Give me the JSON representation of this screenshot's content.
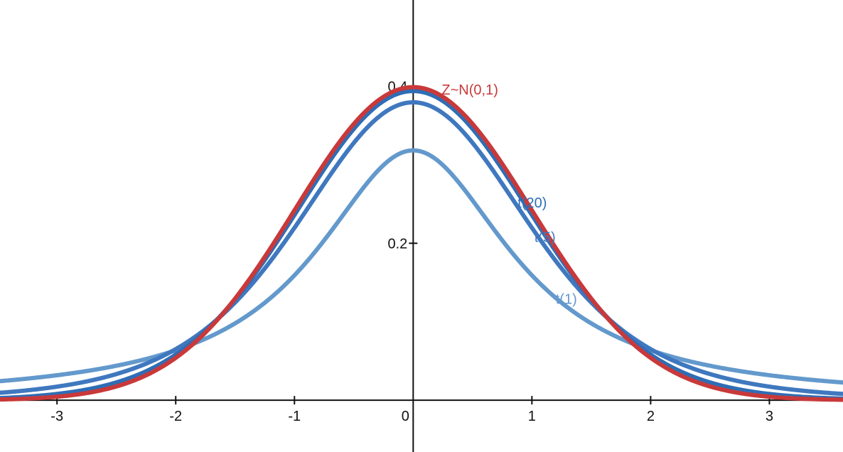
{
  "chart_data": {
    "type": "line",
    "title": "",
    "xlabel": "",
    "ylabel": "",
    "xlim": [
      -3.48,
      3.62
    ],
    "ylim": [
      -0.066,
      0.51
    ],
    "grid": false,
    "x_ticks": [
      {
        "value": -3,
        "label": "-3"
      },
      {
        "value": -2,
        "label": "-2"
      },
      {
        "value": -1,
        "label": "-1"
      },
      {
        "value": 0,
        "label": "0"
      },
      {
        "value": 1,
        "label": "1"
      },
      {
        "value": 2,
        "label": "2"
      },
      {
        "value": 3,
        "label": "3"
      }
    ],
    "y_ticks": [
      {
        "value": 0.2,
        "label": "0.2"
      },
      {
        "value": 0.4,
        "label": "0.4"
      }
    ],
    "series": [
      {
        "name": "t(1)",
        "distribution": "t",
        "df": 1,
        "color": "#6399cc",
        "label_at": [
          1.2,
          0.129
        ],
        "x": [
          -3.5,
          -3,
          -2.5,
          -2,
          -1.5,
          -1,
          -0.5,
          0,
          0.5,
          1,
          1.5,
          2,
          2.5,
          3,
          3.5
        ],
        "y": [
          0.0236,
          0.0318,
          0.0439,
          0.0637,
          0.0979,
          0.1592,
          0.2546,
          0.3183,
          0.2546,
          0.1592,
          0.0979,
          0.0637,
          0.0439,
          0.0318,
          0.0236
        ]
      },
      {
        "name": "t(5)",
        "distribution": "t",
        "df": 5,
        "color": "#3f78bf",
        "label_at": [
          1.02,
          0.208
        ],
        "x": [
          -3.5,
          -3,
          -2.5,
          -2,
          -1.5,
          -1,
          -0.5,
          0,
          0.5,
          1,
          1.5,
          2,
          2.5,
          3,
          3.5
        ],
        "y": [
          0.0067,
          0.013,
          0.0269,
          0.0651,
          0.1245,
          0.2197,
          0.3279,
          0.3796,
          0.3279,
          0.2197,
          0.1245,
          0.0651,
          0.0269,
          0.013,
          0.0067
        ]
      },
      {
        "name": "t(20)",
        "distribution": "t",
        "df": 20,
        "color": "#2f6db5",
        "label_at": [
          0.88,
          0.252
        ],
        "x": [
          -3.5,
          -3,
          -2.5,
          -2,
          -1.5,
          -1,
          -0.5,
          0,
          0.5,
          1,
          1.5,
          2,
          2.5,
          3,
          3.5
        ],
        "y": [
          0.002,
          0.0062,
          0.0197,
          0.0581,
          0.1286,
          0.236,
          0.348,
          0.394,
          0.348,
          0.236,
          0.1286,
          0.0581,
          0.0197,
          0.0062,
          0.002
        ]
      },
      {
        "name": "Z~N(0,1)",
        "distribution": "normal",
        "color": "#c9393a",
        "label_at": [
          0.24,
          0.396
        ],
        "x": [
          -3.5,
          -3,
          -2.5,
          -2,
          -1.5,
          -1,
          -0.5,
          0,
          0.5,
          1,
          1.5,
          2,
          2.5,
          3,
          3.5
        ],
        "y": [
          0.0009,
          0.0044,
          0.0175,
          0.054,
          0.1295,
          0.242,
          0.3521,
          0.3989,
          0.3521,
          0.242,
          0.1295,
          0.054,
          0.0175,
          0.0044,
          0.0009
        ]
      }
    ]
  }
}
